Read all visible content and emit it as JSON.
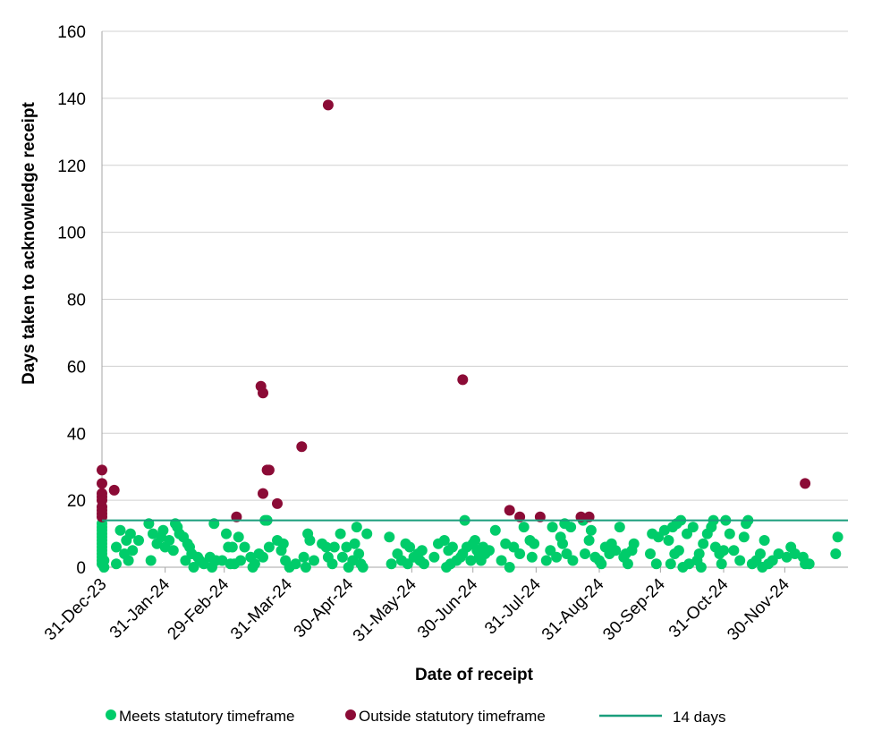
{
  "chart_data": {
    "type": "scatter",
    "title": "",
    "xlabel": "Date of receipt",
    "ylabel": "Days taken to acknowledge receipt",
    "x_axis": {
      "min": "2023-12-31",
      "max": "2024-12-31",
      "tick_dates": [
        "2023-12-31",
        "2024-01-31",
        "2024-02-29",
        "2024-03-31",
        "2024-04-30",
        "2024-05-31",
        "2024-06-30",
        "2024-07-31",
        "2024-08-31",
        "2024-09-30",
        "2024-10-31",
        "2024-11-30"
      ],
      "tick_labels": [
        "31-Dec-23",
        "31-Jan-24",
        "29-Feb-24",
        "31-Mar-24",
        "30-Apr-24",
        "31-May-24",
        "30-Jun-24",
        "31-Jul-24",
        "31-Aug-24",
        "30-Sep-24",
        "31-Oct-24",
        "30-Nov-24"
      ]
    },
    "y_axis": {
      "min": 0,
      "max": 160,
      "ticks": [
        0,
        20,
        40,
        60,
        80,
        100,
        120,
        140,
        160
      ]
    },
    "grid": "horizontal",
    "legend_position": "bottom",
    "reference_line": {
      "name": "14 days",
      "value": 14,
      "color": "#1a9e7c"
    },
    "series": [
      {
        "name": "Meets statutory timeframe",
        "color": "#00cc6a",
        "points": [
          [
            "2023-12-31",
            1
          ],
          [
            "2023-12-31",
            2
          ],
          [
            "2023-12-31",
            3
          ],
          [
            "2023-12-31",
            4
          ],
          [
            "2023-12-31",
            5
          ],
          [
            "2023-12-31",
            6
          ],
          [
            "2023-12-31",
            7
          ],
          [
            "2023-12-31",
            8
          ],
          [
            "2023-12-31",
            9
          ],
          [
            "2023-12-31",
            10
          ],
          [
            "2023-12-31",
            11
          ],
          [
            "2023-12-31",
            12
          ],
          [
            "2023-12-31",
            13
          ],
          [
            "2024-01-01",
            0
          ],
          [
            "2024-01-01",
            2
          ],
          [
            "2024-01-07",
            6
          ],
          [
            "2024-01-07",
            1
          ],
          [
            "2024-01-09",
            11
          ],
          [
            "2024-01-11",
            4
          ],
          [
            "2024-01-12",
            8
          ],
          [
            "2024-01-13",
            2
          ],
          [
            "2024-01-14",
            10
          ],
          [
            "2024-01-15",
            5
          ],
          [
            "2024-01-18",
            8
          ],
          [
            "2024-01-23",
            13
          ],
          [
            "2024-01-24",
            2
          ],
          [
            "2024-01-25",
            10
          ],
          [
            "2024-01-27",
            7
          ],
          [
            "2024-01-29",
            9
          ],
          [
            "2024-01-30",
            11
          ],
          [
            "2024-01-31",
            6
          ],
          [
            "2024-02-02",
            8
          ],
          [
            "2024-02-04",
            5
          ],
          [
            "2024-02-05",
            13
          ],
          [
            "2024-02-06",
            12
          ],
          [
            "2024-02-07",
            10
          ],
          [
            "2024-02-09",
            9
          ],
          [
            "2024-02-10",
            2
          ],
          [
            "2024-02-11",
            7
          ],
          [
            "2024-02-12",
            6
          ],
          [
            "2024-02-13",
            4
          ],
          [
            "2024-02-14",
            0
          ],
          [
            "2024-02-16",
            3
          ],
          [
            "2024-02-17",
            2
          ],
          [
            "2024-02-19",
            1
          ],
          [
            "2024-02-22",
            3
          ],
          [
            "2024-02-23",
            0
          ],
          [
            "2024-02-24",
            13
          ],
          [
            "2024-02-25",
            2
          ],
          [
            "2024-02-28",
            2
          ],
          [
            "2024-03-01",
            10
          ],
          [
            "2024-03-02",
            6
          ],
          [
            "2024-03-03",
            1
          ],
          [
            "2024-03-04",
            6
          ],
          [
            "2024-03-05",
            1
          ],
          [
            "2024-03-07",
            9
          ],
          [
            "2024-03-08",
            2
          ],
          [
            "2024-03-10",
            6
          ],
          [
            "2024-03-13",
            3
          ],
          [
            "2024-03-14",
            0
          ],
          [
            "2024-03-15",
            1
          ],
          [
            "2024-03-17",
            4
          ],
          [
            "2024-03-19",
            3
          ],
          [
            "2024-03-20",
            14
          ],
          [
            "2024-03-21",
            14
          ],
          [
            "2024-03-22",
            6
          ],
          [
            "2024-03-26",
            8
          ],
          [
            "2024-03-28",
            5
          ],
          [
            "2024-03-29",
            7
          ],
          [
            "2024-03-30",
            2
          ],
          [
            "2024-04-01",
            0
          ],
          [
            "2024-04-04",
            1
          ],
          [
            "2024-04-08",
            3
          ],
          [
            "2024-04-09",
            0
          ],
          [
            "2024-04-10",
            10
          ],
          [
            "2024-04-11",
            8
          ],
          [
            "2024-04-13",
            2
          ],
          [
            "2024-04-17",
            7
          ],
          [
            "2024-04-19",
            6
          ],
          [
            "2024-04-20",
            3
          ],
          [
            "2024-04-22",
            1
          ],
          [
            "2024-04-23",
            6
          ],
          [
            "2024-04-26",
            10
          ],
          [
            "2024-04-27",
            3
          ],
          [
            "2024-04-29",
            6
          ],
          [
            "2024-04-30",
            0
          ],
          [
            "2024-05-02",
            2
          ],
          [
            "2024-05-03",
            7
          ],
          [
            "2024-05-04",
            12
          ],
          [
            "2024-05-05",
            4
          ],
          [
            "2024-05-06",
            1
          ],
          [
            "2024-05-07",
            0
          ],
          [
            "2024-05-09",
            10
          ],
          [
            "2024-05-20",
            9
          ],
          [
            "2024-05-21",
            1
          ],
          [
            "2024-05-24",
            4
          ],
          [
            "2024-05-26",
            2
          ],
          [
            "2024-05-28",
            7
          ],
          [
            "2024-05-29",
            1
          ],
          [
            "2024-05-30",
            6
          ],
          [
            "2024-06-01",
            3
          ],
          [
            "2024-06-03",
            4
          ],
          [
            "2024-06-04",
            2
          ],
          [
            "2024-06-05",
            5
          ],
          [
            "2024-06-06",
            1
          ],
          [
            "2024-06-11",
            3
          ],
          [
            "2024-06-13",
            7
          ],
          [
            "2024-06-16",
            8
          ],
          [
            "2024-06-17",
            0
          ],
          [
            "2024-06-18",
            5
          ],
          [
            "2024-06-19",
            1
          ],
          [
            "2024-06-20",
            6
          ],
          [
            "2024-06-22",
            2
          ],
          [
            "2024-06-24",
            3
          ],
          [
            "2024-06-25",
            4
          ],
          [
            "2024-06-26",
            14
          ],
          [
            "2024-06-27",
            6
          ],
          [
            "2024-06-29",
            2
          ],
          [
            "2024-06-30",
            7
          ],
          [
            "2024-07-01",
            8
          ],
          [
            "2024-07-02",
            5
          ],
          [
            "2024-07-03",
            3
          ],
          [
            "2024-07-04",
            2
          ],
          [
            "2024-07-05",
            6
          ],
          [
            "2024-07-06",
            4
          ],
          [
            "2024-07-08",
            5
          ],
          [
            "2024-07-11",
            11
          ],
          [
            "2024-07-14",
            2
          ],
          [
            "2024-07-16",
            7
          ],
          [
            "2024-07-18",
            0
          ],
          [
            "2024-07-20",
            6
          ],
          [
            "2024-07-23",
            4
          ],
          [
            "2024-07-25",
            12
          ],
          [
            "2024-07-28",
            8
          ],
          [
            "2024-07-29",
            3
          ],
          [
            "2024-07-30",
            7
          ],
          [
            "2024-08-05",
            2
          ],
          [
            "2024-08-07",
            5
          ],
          [
            "2024-08-08",
            12
          ],
          [
            "2024-08-10",
            3
          ],
          [
            "2024-08-12",
            9
          ],
          [
            "2024-08-13",
            7
          ],
          [
            "2024-08-14",
            13
          ],
          [
            "2024-08-15",
            4
          ],
          [
            "2024-08-17",
            12
          ],
          [
            "2024-08-18",
            2
          ],
          [
            "2024-08-23",
            14
          ],
          [
            "2024-08-24",
            4
          ],
          [
            "2024-08-26",
            8
          ],
          [
            "2024-08-27",
            11
          ],
          [
            "2024-08-29",
            3
          ],
          [
            "2024-08-31",
            2
          ],
          [
            "2024-09-01",
            1
          ],
          [
            "2024-09-03",
            6
          ],
          [
            "2024-09-05",
            4
          ],
          [
            "2024-09-06",
            7
          ],
          [
            "2024-09-08",
            5
          ],
          [
            "2024-09-10",
            12
          ],
          [
            "2024-09-12",
            3
          ],
          [
            "2024-09-13",
            4
          ],
          [
            "2024-09-14",
            1
          ],
          [
            "2024-09-16",
            5
          ],
          [
            "2024-09-17",
            7
          ],
          [
            "2024-09-25",
            4
          ],
          [
            "2024-09-26",
            10
          ],
          [
            "2024-09-28",
            1
          ],
          [
            "2024-09-29",
            9
          ],
          [
            "2024-10-02",
            11
          ],
          [
            "2024-10-04",
            8
          ],
          [
            "2024-10-05",
            1
          ],
          [
            "2024-10-06",
            12
          ],
          [
            "2024-10-07",
            4
          ],
          [
            "2024-10-08",
            13
          ],
          [
            "2024-10-09",
            5
          ],
          [
            "2024-10-10",
            14
          ],
          [
            "2024-10-11",
            0
          ],
          [
            "2024-10-13",
            10
          ],
          [
            "2024-10-14",
            1
          ],
          [
            "2024-10-16",
            12
          ],
          [
            "2024-10-18",
            2
          ],
          [
            "2024-10-19",
            4
          ],
          [
            "2024-10-20",
            0
          ],
          [
            "2024-10-21",
            7
          ],
          [
            "2024-10-23",
            10
          ],
          [
            "2024-10-25",
            12
          ],
          [
            "2024-10-26",
            14
          ],
          [
            "2024-10-27",
            6
          ],
          [
            "2024-10-29",
            4
          ],
          [
            "2024-10-30",
            1
          ],
          [
            "2024-10-31",
            5
          ],
          [
            "2024-11-01",
            14
          ],
          [
            "2024-11-03",
            10
          ],
          [
            "2024-11-05",
            5
          ],
          [
            "2024-11-08",
            2
          ],
          [
            "2024-11-10",
            9
          ],
          [
            "2024-11-11",
            13
          ],
          [
            "2024-11-12",
            14
          ],
          [
            "2024-11-14",
            1
          ],
          [
            "2024-11-16",
            2
          ],
          [
            "2024-11-18",
            4
          ],
          [
            "2024-11-19",
            0
          ],
          [
            "2024-11-20",
            8
          ],
          [
            "2024-11-22",
            1
          ],
          [
            "2024-11-24",
            2
          ],
          [
            "2024-11-27",
            4
          ],
          [
            "2024-12-01",
            3
          ],
          [
            "2024-12-03",
            6
          ],
          [
            "2024-12-05",
            4
          ],
          [
            "2024-12-09",
            3
          ],
          [
            "2024-12-10",
            1
          ],
          [
            "2024-12-12",
            1
          ],
          [
            "2024-12-25",
            4
          ],
          [
            "2024-12-26",
            9
          ]
        ]
      },
      {
        "name": "Outside statutory timeframe",
        "color": "#8b0b36",
        "points": [
          [
            "2023-12-31",
            29
          ],
          [
            "2023-12-31",
            25
          ],
          [
            "2023-12-31",
            22
          ],
          [
            "2023-12-31",
            21
          ],
          [
            "2023-12-31",
            20
          ],
          [
            "2023-12-31",
            18
          ],
          [
            "2023-12-31",
            17
          ],
          [
            "2023-12-31",
            16
          ],
          [
            "2023-12-31",
            15
          ],
          [
            "2024-01-06",
            23
          ],
          [
            "2024-03-06",
            15
          ],
          [
            "2024-03-18",
            54
          ],
          [
            "2024-03-19",
            52
          ],
          [
            "2024-03-19",
            22
          ],
          [
            "2024-03-21",
            29
          ],
          [
            "2024-03-22",
            29
          ],
          [
            "2024-03-26",
            19
          ],
          [
            "2024-04-07",
            36
          ],
          [
            "2024-04-20",
            138
          ],
          [
            "2024-06-25",
            56
          ],
          [
            "2024-07-18",
            17
          ],
          [
            "2024-07-23",
            15
          ],
          [
            "2024-08-02",
            15
          ],
          [
            "2024-08-22",
            15
          ],
          [
            "2024-08-26",
            15
          ],
          [
            "2024-12-10",
            25
          ]
        ]
      }
    ]
  }
}
